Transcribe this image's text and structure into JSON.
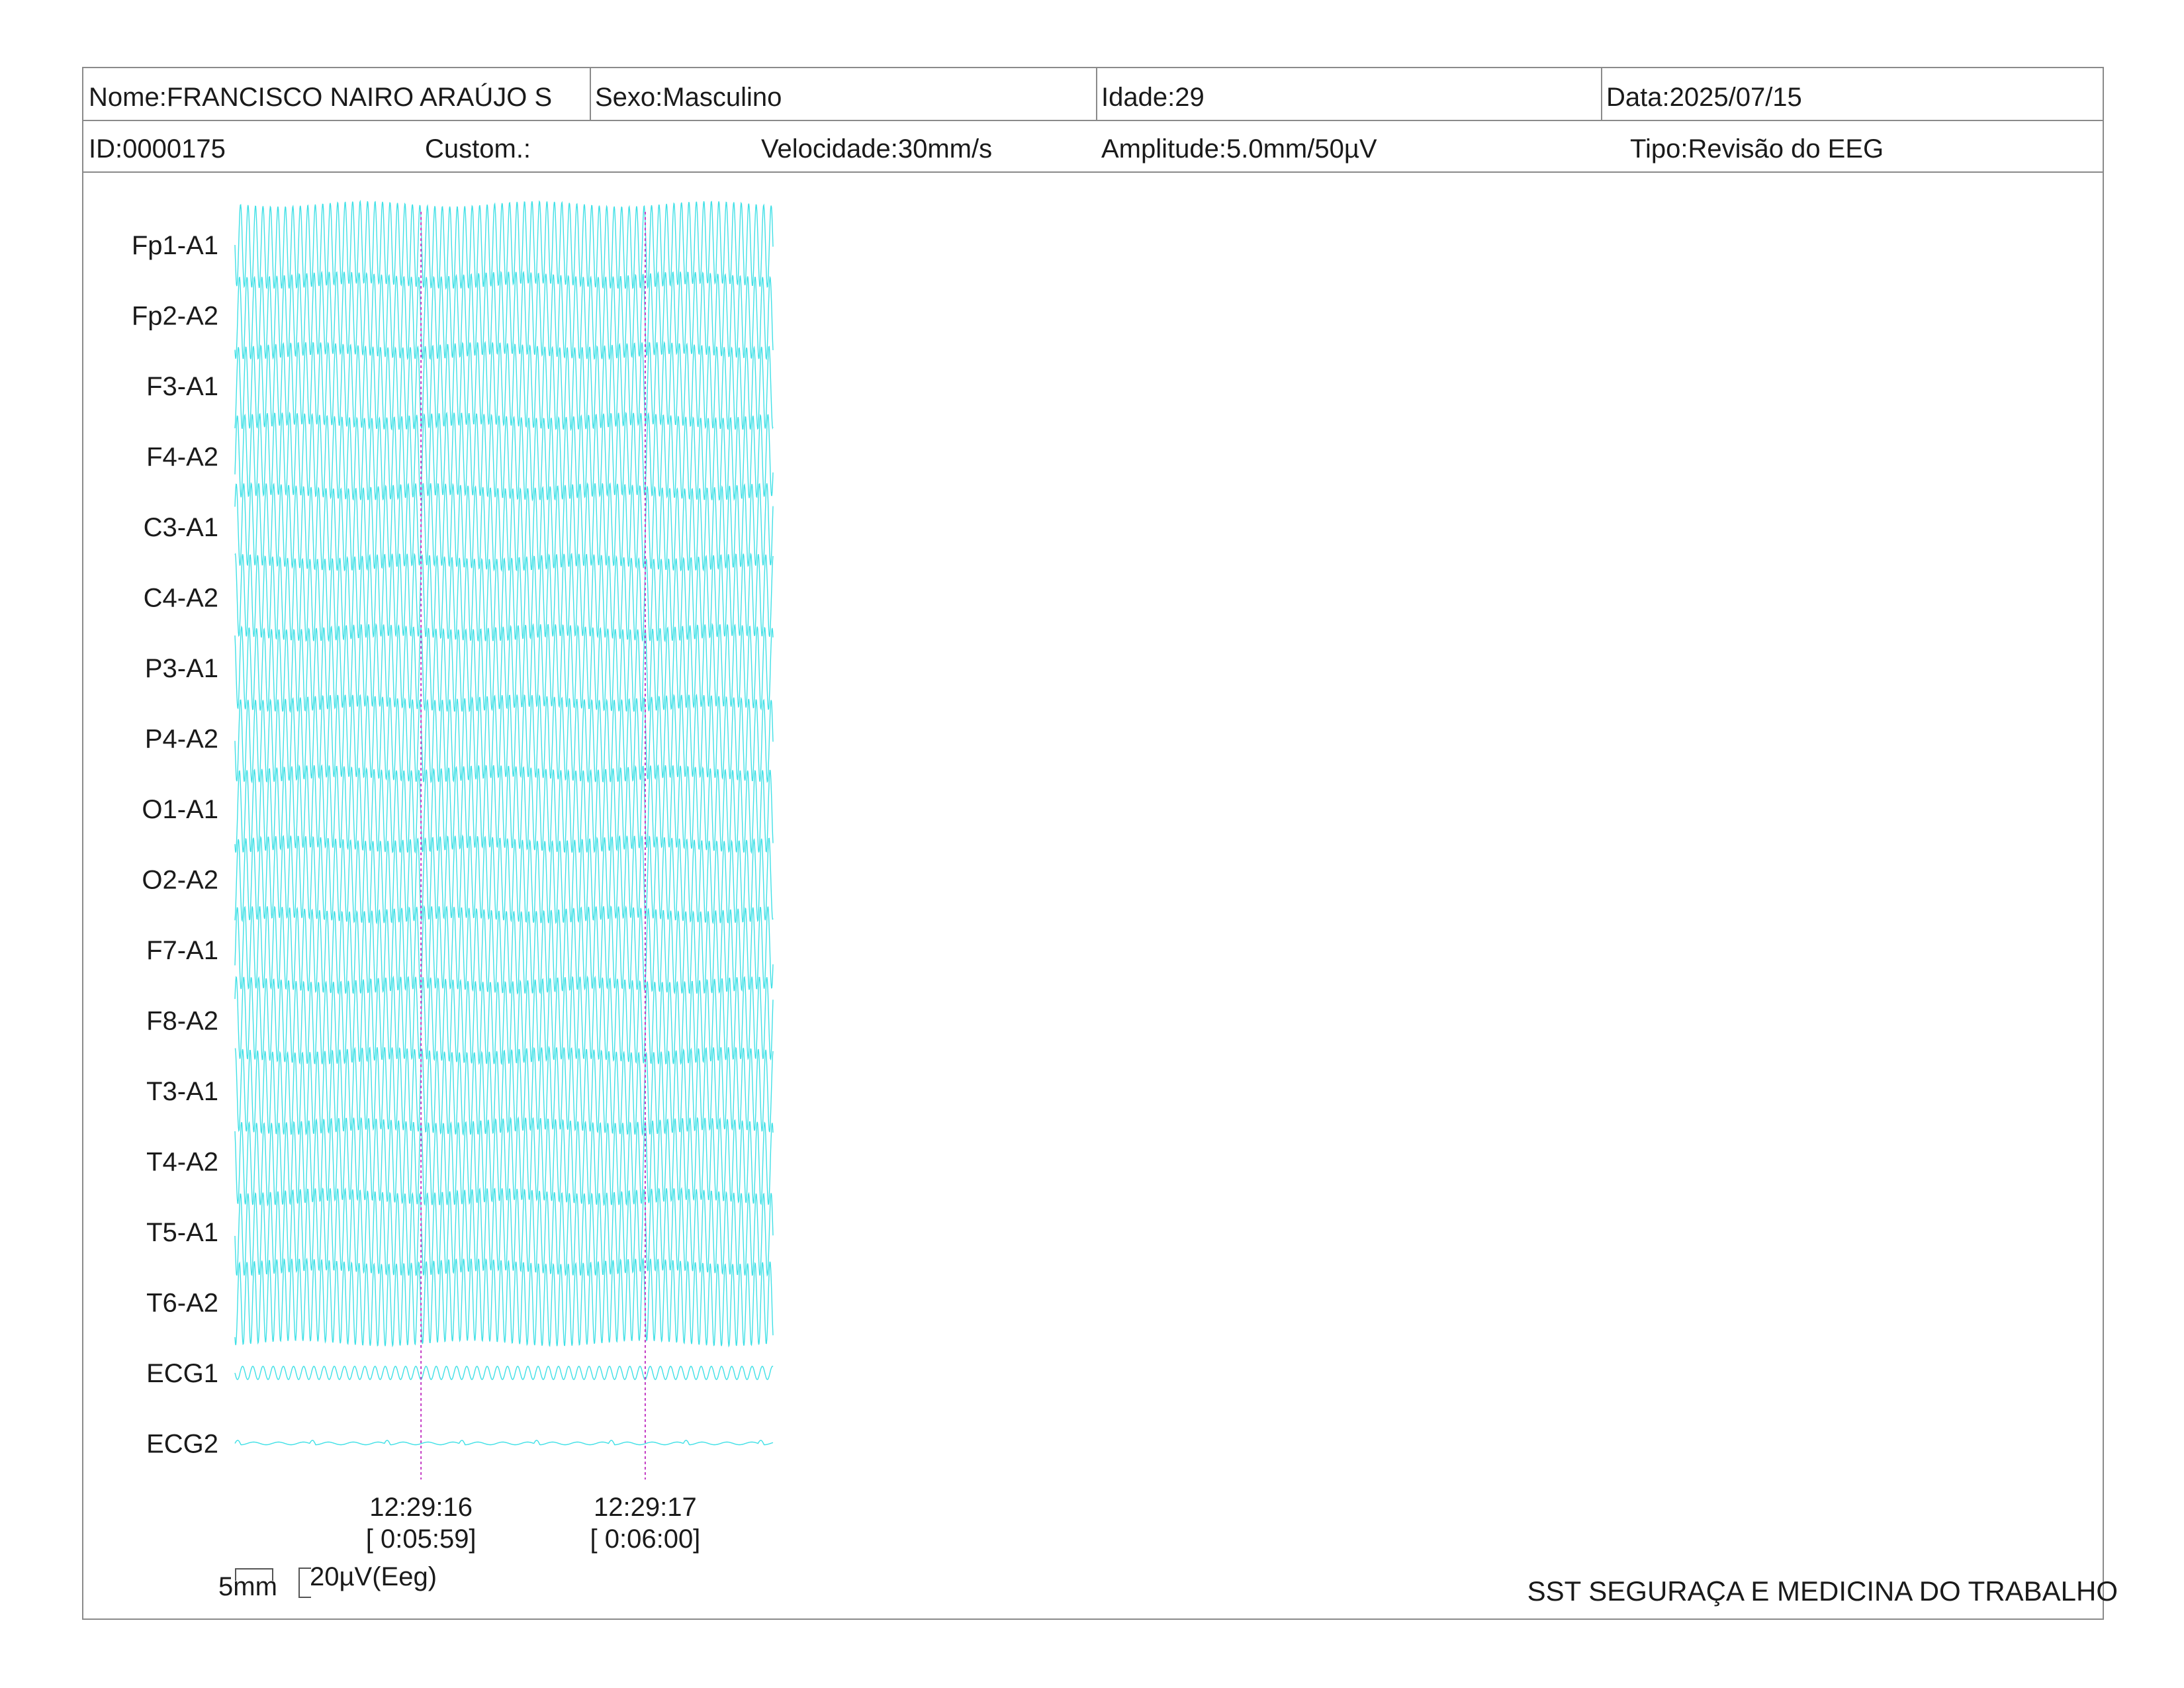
{
  "header": {
    "row1": {
      "name": "Nome:FRANCISCO NAIRO ARAÚJO S",
      "sex": "Sexo:Masculino",
      "age": "Idade:29",
      "date": "Data:2025/07/15"
    },
    "row2": {
      "id": "ID:0000175",
      "custom": "Custom.:",
      "speed": "Velocidade:30mm/s",
      "amplitude": "Amplitude:5.0mm/50µV",
      "type": "Tipo:Revisão do EEG"
    }
  },
  "colors": {
    "trace": "#3fe0e6",
    "marker": "#c43cc4",
    "border": "#8a8a8a",
    "text": "#1a1a1a"
  },
  "chart_data": {
    "type": "line",
    "channels": [
      "Fp1-A1",
      "Fp2-A2",
      "F3-A1",
      "F4-A2",
      "C3-A1",
      "C4-A2",
      "P3-A1",
      "P4-A2",
      "O1-A1",
      "O2-A2",
      "F7-A1",
      "F8-A2",
      "T3-A1",
      "T4-A2",
      "T5-A1",
      "T6-A2",
      "ECG1",
      "ECG2"
    ],
    "eeg_wave": {
      "cycles_per_second": 30,
      "pattern": "high-amplitude continuous sinusoid"
    },
    "ecg1_wave": {
      "cycles_per_second": 22,
      "pattern": "low-amplitude sinusoid"
    },
    "ecg2_wave": {
      "pattern": "near-flat with small periodic bumps"
    },
    "duration_s": 2.4,
    "time_markers": [
      {
        "time": "12:29:16",
        "elapsed": "[ 0:05:59]",
        "t": 0.83
      },
      {
        "time": "12:29:17",
        "elapsed": "[ 0:06:00]",
        "t": 1.83
      }
    ]
  },
  "scale": {
    "time_label": "5mm",
    "amp_label": "20µV(Eeg)"
  },
  "footer": {
    "company": "SST SEGURAÇA E MEDICINA DO TRABALHO"
  }
}
